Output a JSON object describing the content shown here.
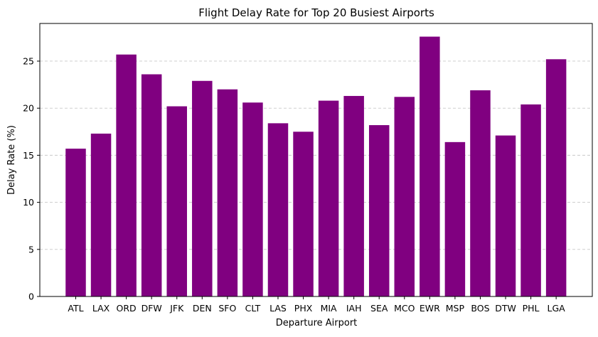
{
  "chart_data": {
    "type": "bar",
    "title": "Flight Delay Rate for Top 20 Busiest Airports",
    "xlabel": "Departure Airport",
    "ylabel": "Delay Rate (%)",
    "categories": [
      "ATL",
      "LAX",
      "ORD",
      "DFW",
      "JFK",
      "DEN",
      "SFO",
      "CLT",
      "LAS",
      "PHX",
      "MIA",
      "IAH",
      "SEA",
      "MCO",
      "EWR",
      "MSP",
      "BOS",
      "DTW",
      "PHL",
      "LGA"
    ],
    "values": [
      15.7,
      17.3,
      25.7,
      23.6,
      20.2,
      22.9,
      22.0,
      20.6,
      18.4,
      17.5,
      20.8,
      21.3,
      18.2,
      21.2,
      27.6,
      16.4,
      21.9,
      17.1,
      20.4,
      25.2
    ],
    "yticks": [
      0,
      5,
      10,
      15,
      20,
      25
    ],
    "ylim": [
      0,
      29
    ],
    "grid": "y-dashed",
    "bar_color": "#800080"
  }
}
